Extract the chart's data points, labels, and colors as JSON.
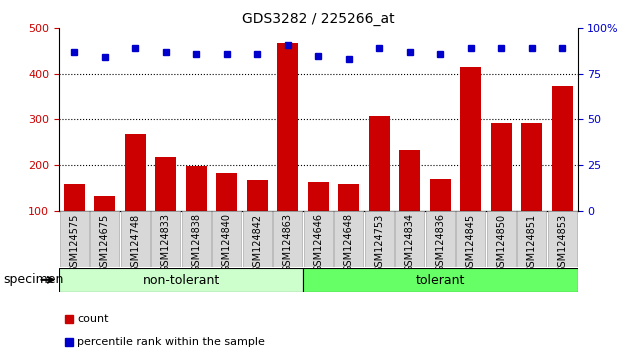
{
  "title": "GDS3282 / 225266_at",
  "categories": [
    "GSM124575",
    "GSM124675",
    "GSM124748",
    "GSM124833",
    "GSM124838",
    "GSM124840",
    "GSM124842",
    "GSM124863",
    "GSM124646",
    "GSM124648",
    "GSM124753",
    "GSM124834",
    "GSM124836",
    "GSM124845",
    "GSM124850",
    "GSM124851",
    "GSM124853"
  ],
  "counts": [
    158,
    133,
    268,
    218,
    197,
    182,
    167,
    468,
    162,
    158,
    308,
    233,
    170,
    415,
    293,
    292,
    373
  ],
  "percentile_ranks": [
    87,
    84,
    89,
    87,
    86,
    86,
    86,
    91,
    85,
    83,
    89,
    87,
    86,
    89,
    89,
    89,
    89
  ],
  "non_tolerant_count": 8,
  "tolerant_count": 9,
  "bar_color": "#cc0000",
  "dot_color": "#0000cc",
  "ylim_left": [
    100,
    500
  ],
  "ylim_right": [
    0,
    100
  ],
  "yticks_left": [
    100,
    200,
    300,
    400,
    500
  ],
  "yticks_right": [
    0,
    25,
    50,
    75,
    100
  ],
  "grid_values": [
    200,
    300,
    400
  ],
  "non_tolerant_color": "#ccffcc",
  "tolerant_color": "#66ff66",
  "specimen_label": "specimen",
  "legend_count_label": "count",
  "legend_pct_label": "percentile rank within the sample",
  "background_color": "#ffffff",
  "tick_label_color_left": "#cc0000",
  "tick_label_color_right": "#0000cc",
  "plot_bg": "#ffffff",
  "tick_bg": "#d8d8d8"
}
